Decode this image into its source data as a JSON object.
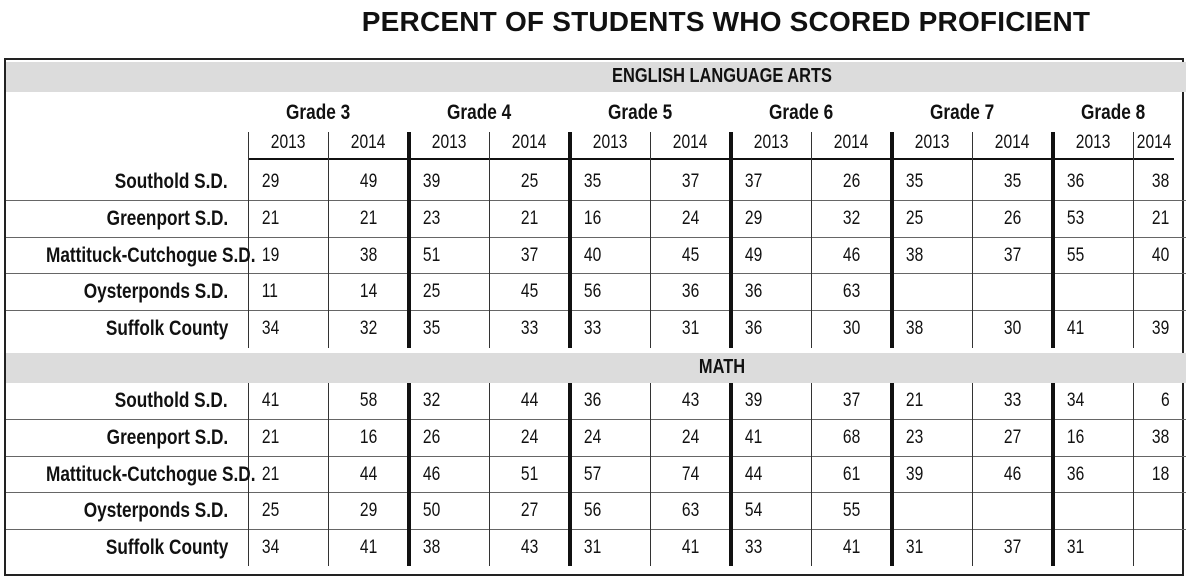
{
  "title": "PERCENT OF STUDENTS WHO SCORED PROFICIENT",
  "chart_data": {
    "type": "table",
    "title": "PERCENT OF STUDENTS WHO SCORED PROFICIENT",
    "grades": [
      "Grade 3",
      "Grade 4",
      "Grade 5",
      "Grade 6",
      "Grade 7",
      "Grade 8"
    ],
    "years": [
      "2013",
      "2014"
    ],
    "sections": [
      {
        "name": "ENGLISH LANGUAGE ARTS",
        "rows": [
          {
            "label": "Southold S.D.",
            "values": [
              "29",
              "49",
              "39",
              "25",
              "35",
              "37",
              "37",
              "26",
              "35",
              "35",
              "36",
              "38"
            ]
          },
          {
            "label": "Greenport S.D.",
            "values": [
              "21",
              "21",
              "23",
              "21",
              "16",
              "24",
              "29",
              "32",
              "25",
              "26",
              "53",
              "21"
            ]
          },
          {
            "label": "Mattituck-Cutchogue S.D.",
            "values": [
              "19",
              "38",
              "51",
              "37",
              "40",
              "45",
              "49",
              "46",
              "38",
              "37",
              "55",
              "40"
            ]
          },
          {
            "label": "Oysterponds S.D.",
            "values": [
              "11",
              "14",
              "25",
              "45",
              "56",
              "36",
              "36",
              "63",
              "",
              "",
              "",
              ""
            ]
          },
          {
            "label": "Suffolk County",
            "values": [
              "34",
              "32",
              "35",
              "33",
              "33",
              "31",
              "36",
              "30",
              "38",
              "30",
              "41",
              "39"
            ]
          }
        ]
      },
      {
        "name": "MATH",
        "rows": [
          {
            "label": "Southold S.D.",
            "values": [
              "41",
              "58",
              "32",
              "44",
              "36",
              "43",
              "39",
              "37",
              "21",
              "33",
              "34",
              "6"
            ]
          },
          {
            "label": "Greenport S.D.",
            "values": [
              "21",
              "16",
              "26",
              "24",
              "24",
              "24",
              "41",
              "68",
              "23",
              "27",
              "16",
              "38"
            ]
          },
          {
            "label": "Mattituck-Cutchogue S.D.",
            "values": [
              "21",
              "44",
              "46",
              "51",
              "57",
              "74",
              "44",
              "61",
              "39",
              "46",
              "36",
              "18"
            ]
          },
          {
            "label": "Oysterponds S.D.",
            "values": [
              "25",
              "29",
              "50",
              "27",
              "56",
              "63",
              "54",
              "55",
              "",
              "",
              "",
              ""
            ]
          },
          {
            "label": "Suffolk County",
            "values": [
              "34",
              "41",
              "38",
              "43",
              "31",
              "41",
              "33",
              "41",
              "31",
              "37",
              "31",
              ""
            ]
          }
        ]
      }
    ]
  }
}
